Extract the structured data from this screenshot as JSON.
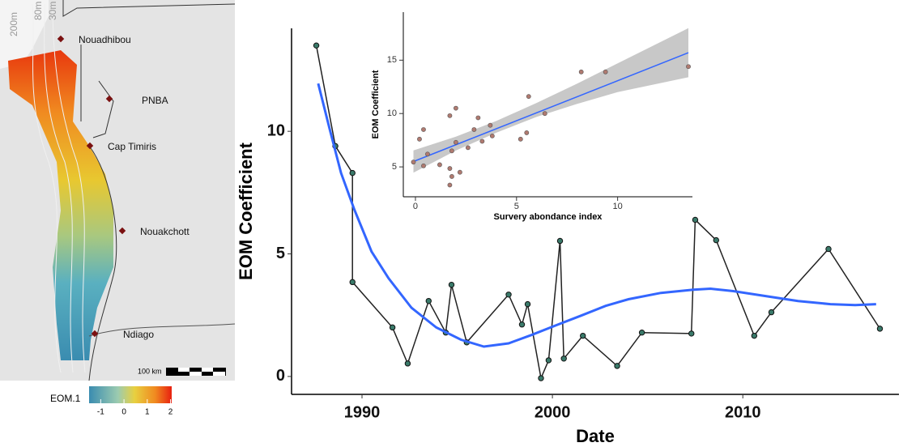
{
  "map": {
    "places": [
      "Nouadhibou",
      "PNBA",
      "Cap Timiris",
      "Nouakchott",
      "Ndiago"
    ],
    "depths": [
      "200m",
      "80m",
      "30m"
    ],
    "scale": "100 km",
    "legend": {
      "title": "EOM.1",
      "range": [
        -1.5,
        2.05
      ],
      "ticks": [
        -1,
        0,
        1,
        2
      ]
    }
  },
  "chart_data": [
    {
      "type": "line",
      "xlabel": "Date",
      "ylabel": "EOM Coefficient",
      "xlim": [
        1986.3,
        2018.2
      ],
      "ylim": [
        -0.73,
        14.2
      ],
      "xticks": [
        1990,
        2000,
        2010
      ],
      "yticks": [
        0,
        5,
        10
      ],
      "series": [
        {
          "color": "#222222",
          "markers": true,
          "x": [
            1987.6,
            1988.6,
            1989.5,
            1989.5,
            1991.6,
            1992.4,
            1993.5,
            1994.4,
            1994.7,
            1995.5,
            1997.7,
            1998.4,
            1998.7,
            1999.4,
            1999.8,
            2000.4,
            2000.6,
            2001.6,
            2003.4,
            2004.7,
            2007.3,
            2007.5,
            2008.6,
            2010.6,
            2011.5,
            2014.5,
            2017.2
          ],
          "values": [
            13.5,
            9.4,
            8.3,
            3.85,
            2.0,
            0.53,
            3.08,
            1.79,
            3.74,
            1.39,
            3.34,
            2.12,
            2.95,
            -0.07,
            0.66,
            5.53,
            0.73,
            1.66,
            0.43,
            1.79,
            1.75,
            6.39,
            5.56,
            1.66,
            2.62,
            5.2,
            1.95
          ]
        },
        {
          "color": "#3366ff",
          "markers": false,
          "x": [
            1987.7,
            1988.3,
            1988.9,
            1989.6,
            1990.5,
            1991.4,
            1992.6,
            1993.9,
            1995.2,
            1996.4,
            1997.7,
            1998.9,
            2000.2,
            2001.5,
            2002.8,
            2004.0,
            2005.7,
            2007.4,
            2008.3,
            2009.5,
            2011.2,
            2012.9,
            2014.6,
            2015.9,
            2017.0
          ],
          "values": [
            11.95,
            10.1,
            8.3,
            6.8,
            5.1,
            4.0,
            2.8,
            2.0,
            1.5,
            1.22,
            1.35,
            1.69,
            2.09,
            2.48,
            2.88,
            3.15,
            3.41,
            3.54,
            3.58,
            3.48,
            3.28,
            3.08,
            2.95,
            2.91,
            2.95
          ]
        }
      ]
    },
    {
      "type": "scatter",
      "xlabel": "Survery abondance index",
      "ylabel": "EOM Coefficient",
      "xlim": [
        -0.6,
        13.7
      ],
      "ylim": [
        2.2,
        19.5
      ],
      "xticks": [
        0,
        5,
        10
      ],
      "yticks": [
        5,
        10,
        15
      ],
      "color": "#b07a70",
      "x": [
        -0.1,
        0.2,
        0.4,
        0.6,
        0.4,
        1.2,
        1.7,
        1.7,
        1.7,
        1.8,
        1.8,
        2.0,
        2.0,
        2.2,
        2.6,
        2.9,
        3.1,
        3.3,
        3.7,
        3.8,
        5.2,
        5.5,
        5.6,
        6.4,
        8.2,
        9.4,
        13.5
      ],
      "values": [
        5.45,
        7.6,
        8.5,
        6.2,
        5.1,
        5.2,
        9.8,
        4.85,
        3.3,
        4.1,
        6.5,
        7.3,
        10.5,
        4.5,
        6.8,
        8.5,
        9.6,
        7.4,
        8.9,
        7.9,
        7.6,
        8.2,
        11.6,
        10.0,
        13.9,
        13.9,
        14.4
      ],
      "fit": {
        "color": "#3366ff",
        "x": [
          -0.1,
          13.5
        ],
        "values": [
          5.5,
          15.7
        ]
      },
      "band": {
        "color": "#c8c8c8",
        "x": [
          -0.1,
          2,
          4,
          6,
          8,
          10,
          13.5
        ],
        "lower": [
          4.45,
          6.53,
          8.2,
          9.7,
          10.9,
          12.0,
          13.4
        ],
        "upper": [
          6.55,
          7.83,
          9.3,
          11.0,
          12.8,
          14.7,
          18.0
        ]
      }
    }
  ]
}
